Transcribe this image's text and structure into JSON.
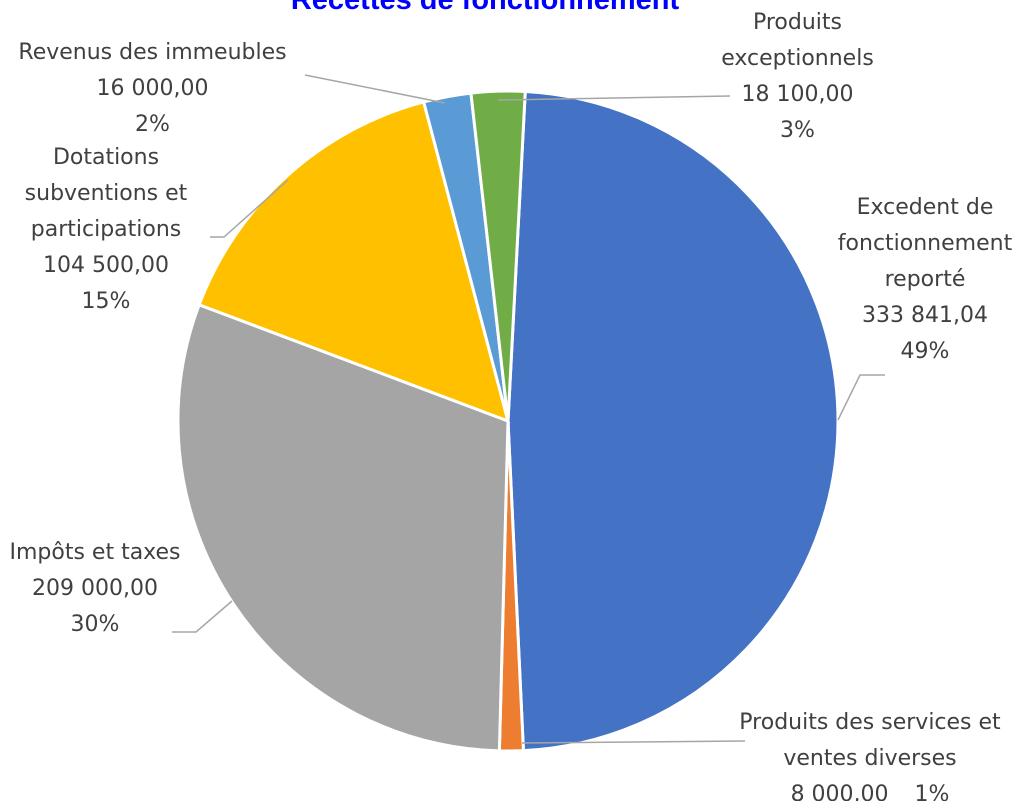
{
  "chart_data": {
    "type": "pie",
    "title": "Recettes de fonctionnement",
    "categories": [
      "Excedent de fonctionnement reporté",
      "Produits des services et ventes diverses",
      "Impôts et taxes",
      "Dotations subventions et participations",
      "Revenus des immeubles",
      "Produits exceptionnels"
    ],
    "values": [
      333841.04,
      8000,
      209000,
      104500,
      16000,
      18100
    ],
    "value_labels": [
      "333 841,04",
      "8 000,00",
      "209 000,00",
      "104 500,00",
      "16 000,00",
      "18 100,00"
    ],
    "percent_labels": [
      "49%",
      "1%",
      "30%",
      "15%",
      "2%",
      "3%"
    ],
    "colors": [
      "#4472c4",
      "#ed7d31",
      "#a5a5a5",
      "#ffc000",
      "#5b9bd5",
      "#70ad47"
    ]
  }
}
